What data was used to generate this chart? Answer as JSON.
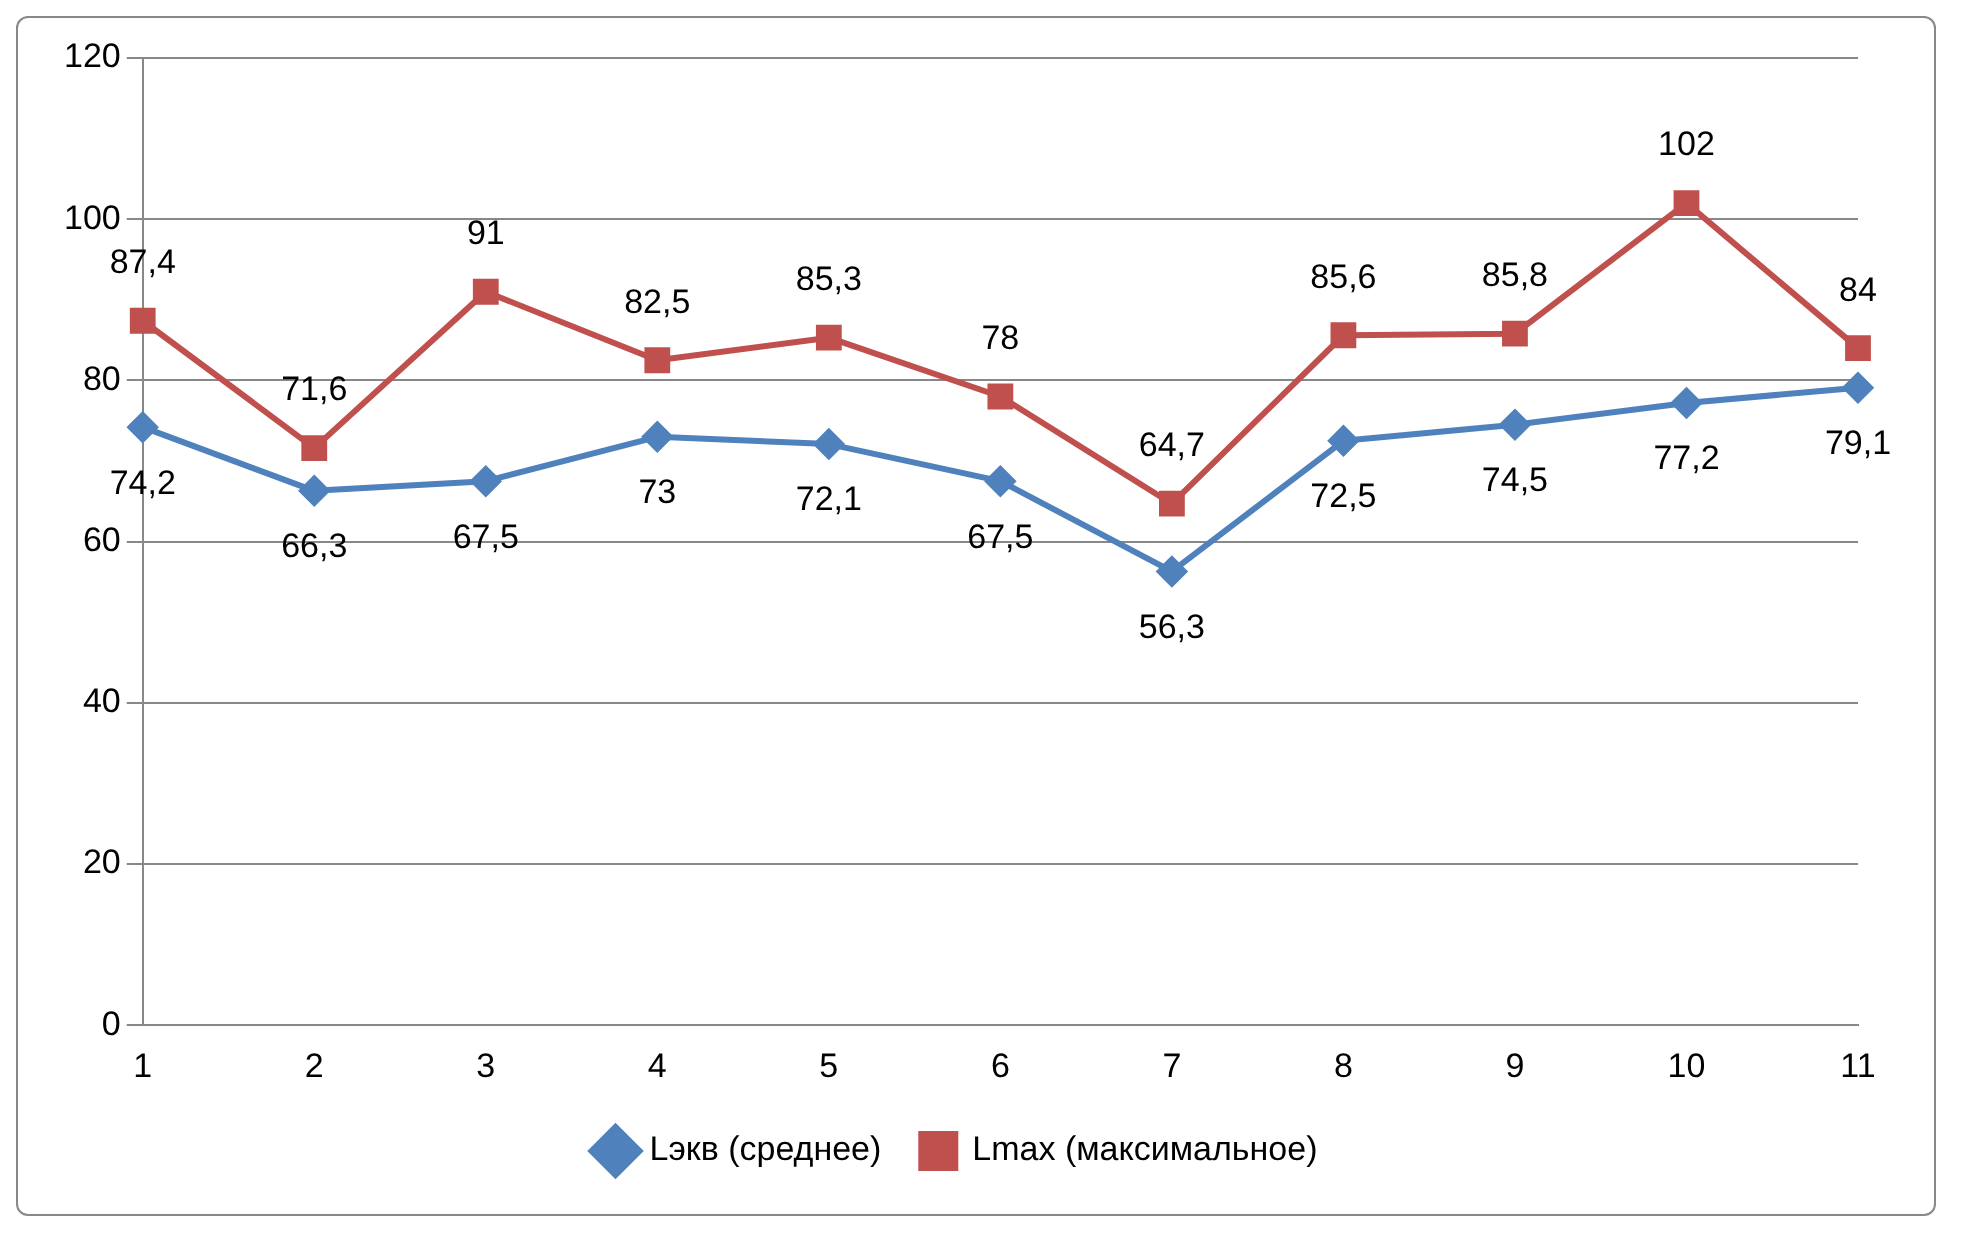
{
  "chart_data": {
    "type": "line",
    "categories": [
      "1",
      "2",
      "3",
      "4",
      "5",
      "6",
      "7",
      "8",
      "9",
      "10",
      "11"
    ],
    "series": [
      {
        "name": "Lэкв (среднее)",
        "color": "#4f81bd",
        "marker": "diamond",
        "values": [
          74.2,
          66.3,
          67.5,
          73,
          72.1,
          67.5,
          56.3,
          72.5,
          74.5,
          77.2,
          79.1
        ],
        "value_labels": [
          "74,2",
          "66,3",
          "67,5",
          "73",
          "72,1",
          "67,5",
          "56,3",
          "72,5",
          "74,5",
          "77,2",
          "79,1"
        ]
      },
      {
        "name": "Lmax (максимальное)",
        "color": "#c0504d",
        "marker": "square",
        "values": [
          87.4,
          71.6,
          91,
          82.5,
          85.3,
          78,
          64.7,
          85.6,
          85.8,
          102,
          84
        ],
        "value_labels": [
          "87,4",
          "71,6",
          "91",
          "82,5",
          "85,3",
          "78",
          "64,7",
          "85,6",
          "85,8",
          "102",
          "84"
        ]
      }
    ],
    "ylim": [
      0,
      120
    ],
    "yticks": [
      0,
      20,
      40,
      60,
      80,
      100,
      120
    ],
    "grid": "y",
    "legend": "bottom",
    "line_style": "solid"
  }
}
